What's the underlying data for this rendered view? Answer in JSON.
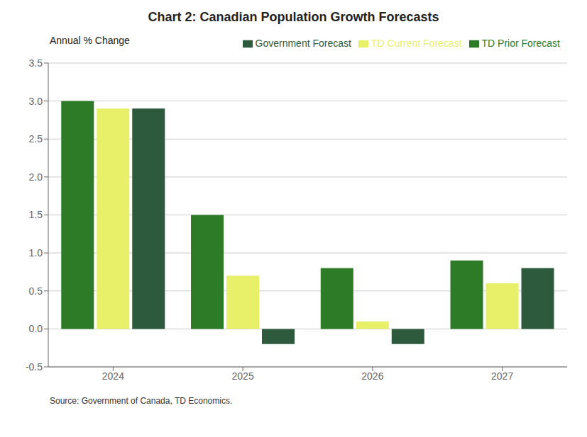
{
  "chart_data": {
    "type": "bar",
    "title": "Chart 2: Canadian Population Growth Forecasts",
    "ylabel": "Annual % Change",
    "source": "Source: Government of Canada, TD Economics.",
    "categories": [
      "2024",
      "2025",
      "2026",
      "2027"
    ],
    "series": [
      {
        "name": "TD Prior Forecast",
        "color": "#2d7a27",
        "values": [
          3.0,
          1.5,
          0.8,
          0.9
        ]
      },
      {
        "name": "TD Current Forecast",
        "color": "#e8f06a",
        "values": [
          2.9,
          0.7,
          0.1,
          0.6
        ]
      },
      {
        "name": "Government Forecast",
        "color": "#2d5a3d",
        "values": [
          2.9,
          -0.2,
          -0.2,
          0.8
        ]
      }
    ],
    "ylim": [
      -0.5,
      3.5
    ],
    "yticks": [
      -0.5,
      {
        "value": 0,
        "label": "0.0"
      },
      0.5,
      {
        "value": 1,
        "label": "1.0"
      },
      1.5,
      {
        "value": 2,
        "label": "2.0"
      },
      2.5,
      {
        "value": 3,
        "label": "3.0"
      },
      3.5
    ],
    "grid": true,
    "legend": "upper right"
  }
}
